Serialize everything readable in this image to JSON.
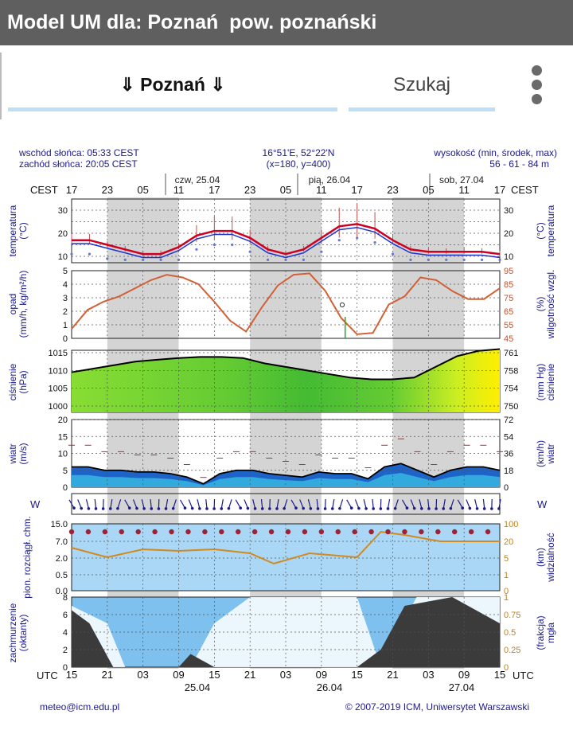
{
  "header": {
    "title": "Model UM dla: Poznań  pow. poznański"
  },
  "nav": {
    "location_label": "⇓ Poznań ⇓",
    "search_label": "Szukaj"
  },
  "meteogram": {
    "sunrise": "wschód słońca: 05:33 CEST",
    "sunset": "zachód słońca: 20:05 CEST",
    "coords": "16°51'E, 52°22'N",
    "grid": "(x=180, y=400)",
    "elevation_label": "wysokość (min, środek, max)",
    "elevation_values": "56 - 61 - 84 m",
    "tz_left": "CEST",
    "tz_right": "CEST",
    "utc_left": "UTC",
    "utc_right": "UTC",
    "day1": "czw, 25.04",
    "day2": "pią, 26.04",
    "day3": "sob, 27.04",
    "date1": "25.04",
    "date2": "26.04",
    "date3": "27.04",
    "cest_ticks": [
      "17",
      "23",
      "05",
      "11",
      "17",
      "23",
      "05",
      "11",
      "17",
      "23",
      "05",
      "11",
      "17"
    ],
    "utc_ticks": [
      "15",
      "21",
      "03",
      "09",
      "15",
      "21",
      "03",
      "09",
      "15",
      "21",
      "03",
      "09",
      "15"
    ],
    "footer_email": "meteo@icm.edu.pl",
    "footer_copy": "© 2007-2019 ICM, Uniwersytet Warszawski",
    "panels": {
      "temperature": {
        "label_left": [
          "temperatura",
          "(°C)"
        ],
        "label_right": [
          "(°C)",
          "temperatura"
        ],
        "ticks": [
          "30",
          "20",
          "10"
        ]
      },
      "precip": {
        "label_left": [
          "opad",
          "(mm/h, kg/m²/h)"
        ],
        "label_right": [
          "(%)",
          "wilgotność wzgl."
        ],
        "ticks_left": [
          "5",
          "4",
          "3",
          "2",
          "1",
          "0"
        ],
        "ticks_right": [
          "95",
          "85",
          "75",
          "65",
          "55",
          "45"
        ]
      },
      "pressure": {
        "label_left": [
          "ciśnienie",
          "(hPa)"
        ],
        "label_right": [
          "(mm Hg)",
          "ciśnienie"
        ],
        "ticks_left": [
          "1015",
          "1010",
          "1005",
          "1000"
        ],
        "ticks_right": [
          "761",
          "758",
          "754",
          "750"
        ]
      },
      "wind": {
        "label_left": [
          "wiatr",
          "(m/s)"
        ],
        "label_right": [
          "(km/h)",
          "wiatr"
        ],
        "ticks_left": [
          "20",
          "15",
          "10",
          "5",
          "0"
        ],
        "ticks_right": [
          "72",
          "54",
          "36",
          "18",
          "0"
        ]
      },
      "winddir": {
        "label_left": "W",
        "label_right": "W"
      },
      "visibility": {
        "label_left": [
          "pion. rozciągł. chm."
        ],
        "label_right": [
          "(km)",
          "widzialność"
        ],
        "ticks_left": [
          "15.0",
          "7.0",
          "2.0",
          "0.5",
          "0.0"
        ],
        "ticks_right": [
          "100",
          "20",
          "5",
          "1",
          "0"
        ]
      },
      "clouds": {
        "label_left": [
          "zachmurzenie",
          "(oktanty)"
        ],
        "label_right": [
          "(frakcja)",
          "mgła"
        ],
        "ticks_left": [
          "8",
          "6",
          "4",
          "2",
          "0"
        ],
        "ticks_right": [
          "1",
          "0.75",
          "0.5",
          "0.25",
          "0"
        ]
      }
    }
  },
  "chart_data": {
    "type": "line",
    "x_hours_cest": [
      "25.04 17",
      "25.04 23",
      "26.04 05",
      "26.04 11",
      "26.04 17",
      "26.04 23",
      "27.04 05",
      "27.04 11",
      "27.04 17"
    ],
    "series": [
      {
        "name": "temperatura",
        "x_start": "2019-04-24 15:00 UTC",
        "step_hours": 3,
        "values": [
          17,
          17,
          15,
          13,
          11,
          11,
          14,
          19,
          21,
          21,
          18,
          13,
          11,
          13,
          18,
          23,
          24,
          22,
          17,
          13,
          12,
          12,
          12,
          12,
          11
        ]
      },
      {
        "name": "wilgotność wzgl.",
        "values": [
          52,
          66,
          72,
          76,
          82,
          88,
          92,
          90,
          85,
          72,
          58,
          50,
          68,
          84,
          92,
          93,
          80,
          60,
          48,
          49,
          70,
          76,
          90,
          88,
          80,
          74,
          74,
          82
        ]
      },
      {
        "name": "ciśnienie",
        "values": [
          1009.5,
          1010.5,
          1011.5,
          1012.5,
          1013,
          1013.5,
          1013.8,
          1013.8,
          1013.5,
          1012,
          1011,
          1010,
          1009,
          1008,
          1007.5,
          1007.5,
          1008,
          1011,
          1014,
          1015.5,
          1016
        ]
      },
      {
        "name": "wiatr",
        "values": [
          6,
          6,
          5,
          5,
          4.5,
          4.5,
          4,
          3,
          1,
          4,
          5,
          5,
          4,
          3.5,
          3,
          4.5,
          4,
          4,
          2.5,
          6,
          7,
          5,
          3,
          5,
          6,
          6,
          5
        ]
      }
    ]
  }
}
